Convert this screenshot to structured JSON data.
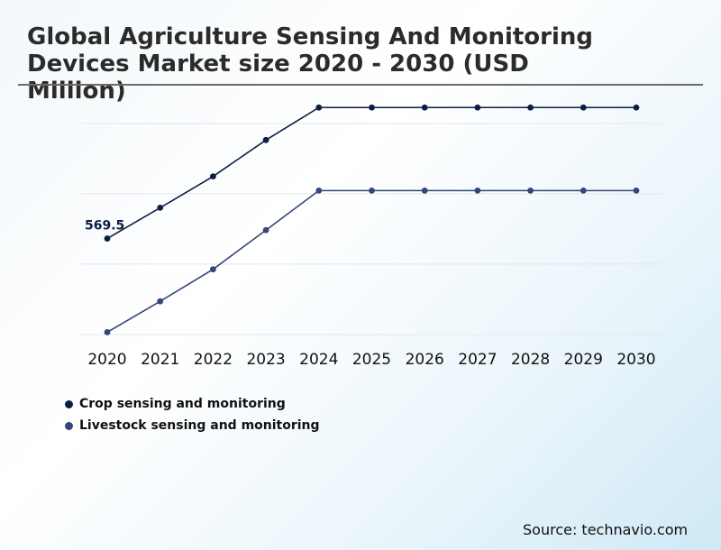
{
  "chart_data": {
    "type": "line",
    "title": "Global Agriculture Sensing And Monitoring Devices Market size 2020 - 2030 (USD Million)",
    "categories": [
      "2020",
      "2021",
      "2022",
      "2023",
      "2024",
      "2025",
      "2026",
      "2027",
      "2028",
      "2029",
      "2030"
    ],
    "series": [
      {
        "name": "Crop sensing and monitoring",
        "color": "#0d1e45",
        "values": [
          569.5,
          704,
          841,
          1000,
          1142,
          1142,
          1142,
          1142,
          1142,
          1142,
          1142
        ]
      },
      {
        "name": "Livestock sensing and monitoring",
        "color": "#34467a",
        "values": [
          160,
          295,
          435,
          606,
          779,
          779,
          779,
          779,
          779,
          779,
          779
        ]
      }
    ],
    "annotations": [
      {
        "series": 0,
        "index": 0,
        "label": "569.5"
      }
    ],
    "ylim": [
      150,
      1143
    ],
    "gridlines": [
      150,
      458,
      765,
      1072
    ],
    "xlabel": "",
    "ylabel": "",
    "legend": "bottom-left"
  },
  "source": "Source: technavio.com"
}
